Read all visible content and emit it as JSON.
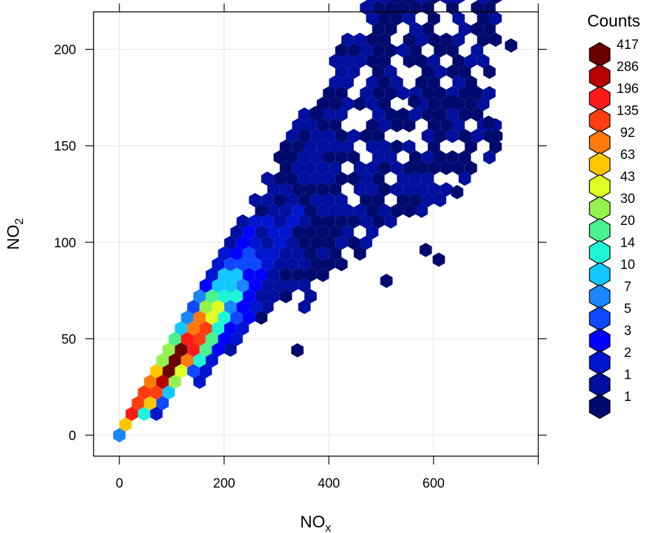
{
  "chart_data": {
    "type": "heatmap",
    "subtype": "hexbin",
    "title": "",
    "xlabel": {
      "main": "NO",
      "sub": "x"
    },
    "ylabel": {
      "main": "NO",
      "sub": "2"
    },
    "xlim": [
      -50,
      800
    ],
    "ylim": [
      -10,
      220
    ],
    "xticks": [
      0,
      200,
      400,
      600
    ],
    "yticks": [
      0,
      50,
      100,
      150,
      200
    ],
    "grid": true,
    "legend": {
      "title": "Counts",
      "placement": "right",
      "labels": [
        "417",
        "286",
        "196",
        "135",
        "92",
        "63",
        "43",
        "30",
        "20",
        "14",
        "10",
        "7",
        "5",
        "3",
        "2",
        "1",
        "1"
      ],
      "colors": [
        "#6b0000",
        "#b80000",
        "#ff1a1a",
        "#ff3d10",
        "#ff7a0a",
        "#ffc600",
        "#dfff20",
        "#94f24e",
        "#48f28c",
        "#1ef5d6",
        "#12c8ff",
        "#1a86ff",
        "#1048ff",
        "#0000ff",
        "#0015d0",
        "#000f9e",
        "#000a6e"
      ]
    },
    "color_scale": [
      "#000a6e",
      "#000f9e",
      "#0015d0",
      "#0000ff",
      "#1048ff",
      "#1a86ff",
      "#12c8ff",
      "#1ef5d6",
      "#48f28c",
      "#94f24e",
      "#dfff20",
      "#ffc600",
      "#ff7a0a",
      "#ff3d10",
      "#ff1a1a",
      "#b80000",
      "#6b0000"
    ],
    "trend": {
      "slope": 0.3,
      "intercept": 3,
      "spread_base": 4,
      "spread_per_x": 0.075,
      "x_max": 720
    },
    "outliers": [
      {
        "x": 748,
        "y": 202
      },
      {
        "x": 673,
        "y": 179
      },
      {
        "x": 375,
        "y": 167
      },
      {
        "x": 563,
        "y": 173
      },
      {
        "x": 635,
        "y": 173
      },
      {
        "x": 705,
        "y": 162
      },
      {
        "x": 720,
        "y": 155
      },
      {
        "x": 340,
        "y": 44
      },
      {
        "x": 610,
        "y": 91
      },
      {
        "x": 585,
        "y": 96
      },
      {
        "x": 510,
        "y": 80
      },
      {
        "x": 645,
        "y": 126
      }
    ]
  }
}
